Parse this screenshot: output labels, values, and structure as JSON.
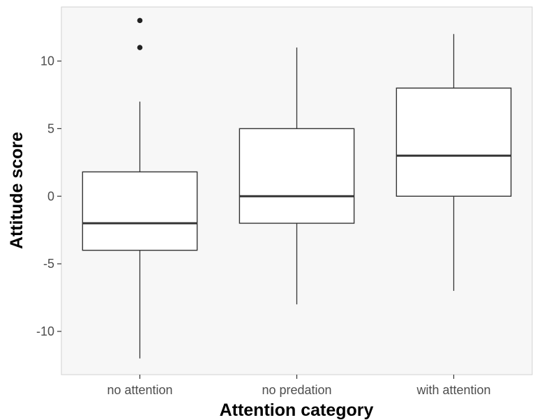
{
  "chart_data": {
    "type": "box",
    "xlabel": "Attention category",
    "ylabel": "Attitude score",
    "categories": [
      "no attention",
      "no predation",
      "with attention"
    ],
    "y_ticks": [
      -10,
      -5,
      0,
      5,
      10
    ],
    "ylim": [
      -13.2,
      14.0
    ],
    "boxes": [
      {
        "category": "no attention",
        "whisker_low": -12,
        "q1": -4,
        "median": -2,
        "q3": 1.8,
        "whisker_high": 7,
        "outliers": [
          11,
          13
        ]
      },
      {
        "category": "no predation",
        "whisker_low": -8,
        "q1": -2,
        "median": 0,
        "q3": 5,
        "whisker_high": 11,
        "outliers": []
      },
      {
        "category": "with attention",
        "whisker_low": -7,
        "q1": 0,
        "median": 3,
        "q3": 8,
        "whisker_high": 12,
        "outliers": []
      }
    ],
    "grid": false,
    "legend": "none",
    "colors": {
      "panel_background": "#f7f7f7",
      "box_fill": "#ffffff",
      "line": "#333333",
      "outlier": "#222222"
    }
  }
}
